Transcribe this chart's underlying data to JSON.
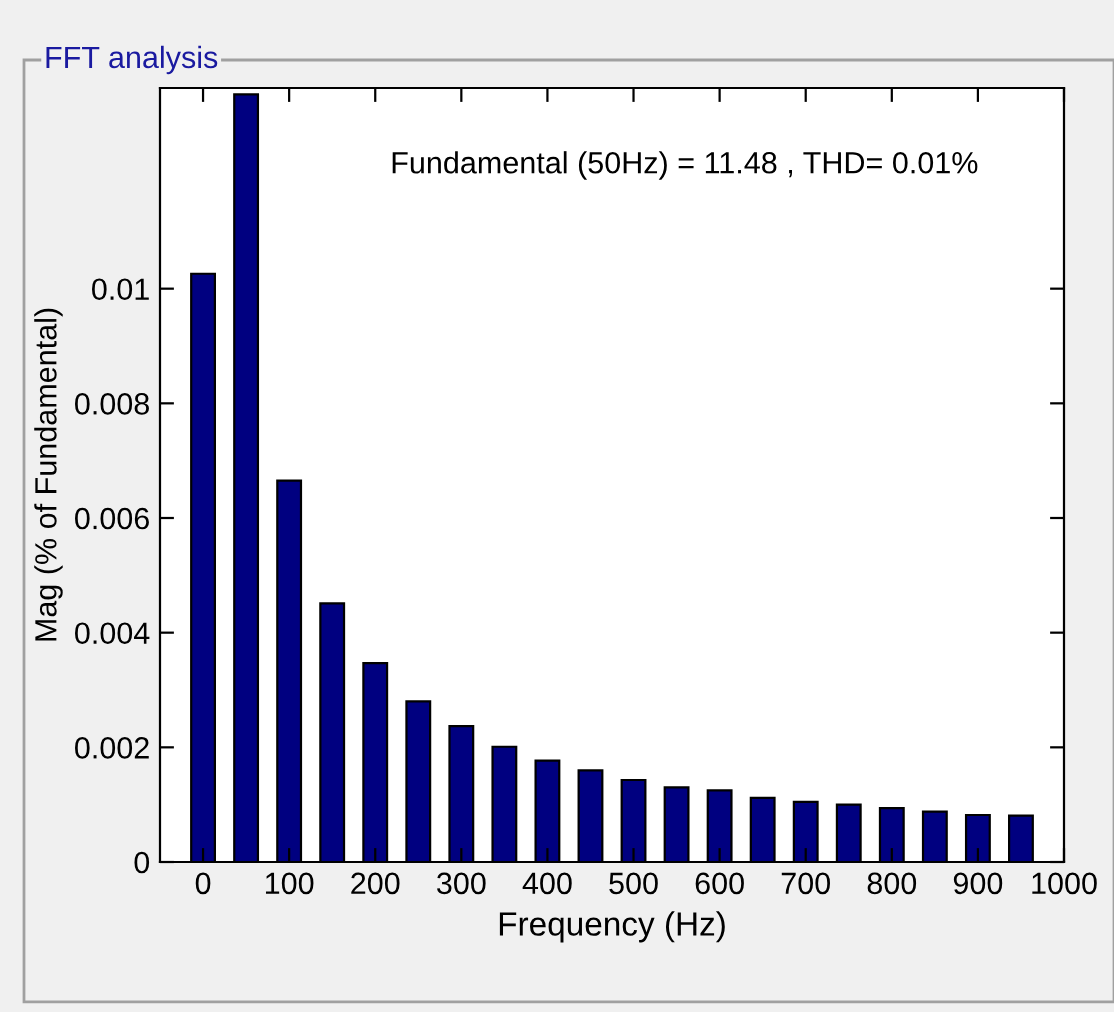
{
  "chart_data": {
    "type": "bar",
    "title": "FFT analysis",
    "subtitle": "Fundamental (50Hz) = 11.48 , THD= 0.01%",
    "xlabel": "Frequency (Hz)",
    "ylabel": "Mag (% of Fundamental)",
    "x": [
      0,
      50,
      100,
      150,
      200,
      250,
      300,
      350,
      400,
      450,
      500,
      550,
      600,
      650,
      700,
      750,
      800,
      850,
      900,
      950
    ],
    "values": [
      0.01026,
      0.01339,
      0.00665,
      0.00451,
      0.00347,
      0.0028,
      0.00237,
      0.00201,
      0.00177,
      0.0016,
      0.00143,
      0.0013,
      0.00125,
      0.00112,
      0.00105,
      0.001,
      0.00094,
      0.00088,
      0.00082,
      0.00081
    ],
    "color": "#000080",
    "xlim": [
      -50,
      1000
    ],
    "xticks": [
      0,
      100,
      200,
      300,
      400,
      500,
      600,
      700,
      800,
      900,
      1000
    ],
    "ylim": [
      0,
      0.0135
    ],
    "yticks": [
      0,
      0.002,
      0.004,
      0.006,
      0.008,
      0.01
    ]
  }
}
